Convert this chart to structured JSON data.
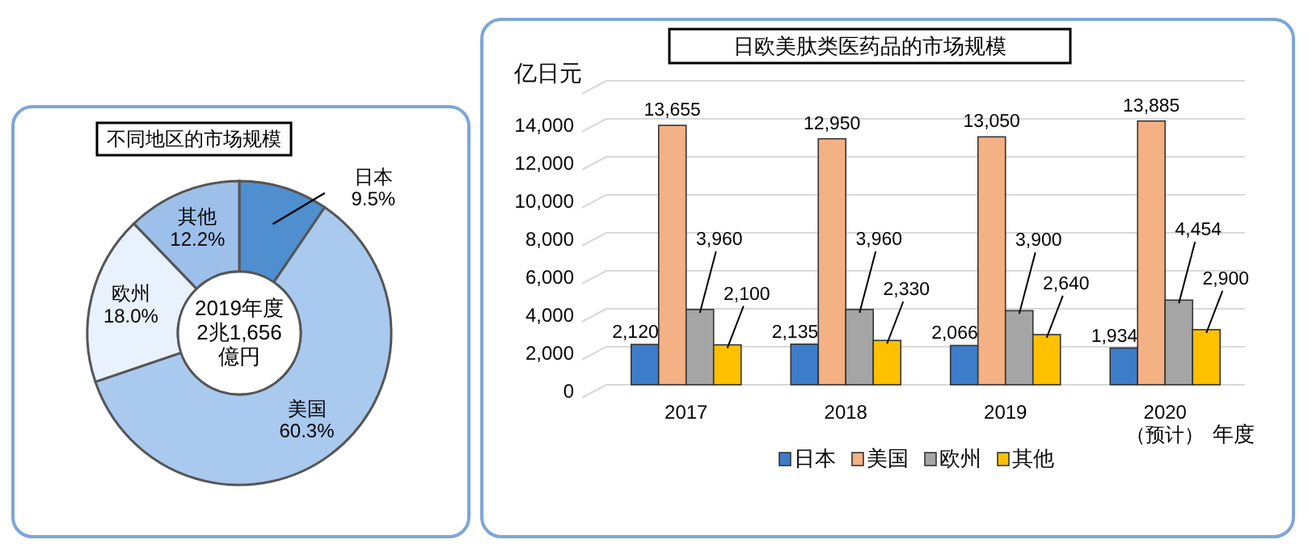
{
  "chart_data": [
    {
      "type": "donut",
      "title": "不同地区的市场规模",
      "categories": [
        "日本",
        "美国",
        "欧州",
        "其他"
      ],
      "values": [
        9.5,
        60.3,
        18.0,
        12.2
      ],
      "colors": [
        "#4f8fd0",
        "#a9c9ee",
        "#e9f1fc",
        "#9dc0ea"
      ],
      "value_labels": [
        "9.5%",
        "60.3%",
        "18.0%",
        "12.2%"
      ],
      "annotations": [
        "2019年度\n2兆1,656\n億円"
      ]
    },
    {
      "type": "bar",
      "title": "日欧美肽类医药品的市场规模",
      "ylabel": "亿日元",
      "xlabel": "年度",
      "categories": [
        "2017",
        "2018",
        "2019",
        "2020\n（预计）"
      ],
      "ylim": [
        0,
        16000
      ],
      "yticks": [
        {
          "value": 0,
          "label": "0"
        },
        {
          "value": 2000,
          "label": "2,000"
        },
        {
          "value": 4000,
          "label": "4,000"
        },
        {
          "value": 6000,
          "label": "6,000"
        },
        {
          "value": 8000,
          "label": "8,000"
        },
        {
          "value": 10000,
          "label": "10,000"
        },
        {
          "value": 12000,
          "label": "12,000"
        },
        {
          "value": 14000,
          "label": "14,000"
        },
        {
          "value": 16000,
          "label": null
        }
      ],
      "grid": "y",
      "legend": "bottom",
      "series": [
        {
          "name": "日本",
          "color": "#3d7cc9",
          "values": [
            2120,
            2135,
            2066,
            1934
          ],
          "value_labels": [
            "2,120",
            "2,135",
            "2,066",
            "1,934"
          ]
        },
        {
          "name": "美国",
          "color": "#f4b183",
          "values": [
            13655,
            12950,
            13050,
            13885
          ],
          "value_labels": [
            "13,655",
            "12,950",
            "13,050",
            "13,885"
          ]
        },
        {
          "name": "欧州",
          "color": "#a5a5a5",
          "values": [
            3960,
            3960,
            3900,
            4454
          ],
          "value_labels": [
            "3,960",
            "3,960",
            "3,900",
            "4,454"
          ]
        },
        {
          "name": "其他",
          "color": "#ffc000",
          "values": [
            2100,
            2330,
            2640,
            2900
          ],
          "value_labels": [
            "2,100",
            "2,330",
            "2,640",
            "2,900"
          ]
        }
      ]
    }
  ]
}
